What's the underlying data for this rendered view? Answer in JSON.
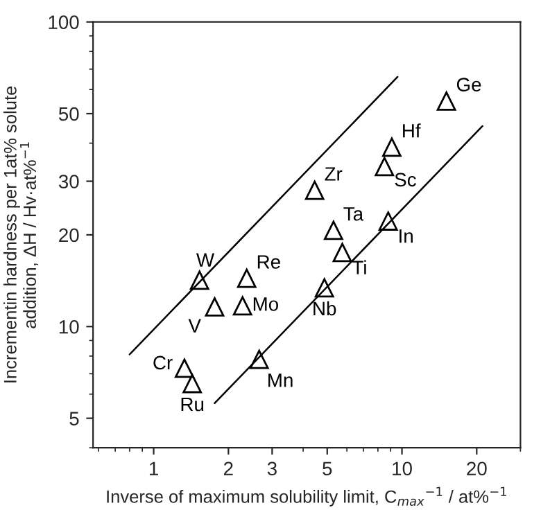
{
  "chart_data": {
    "type": "scatter",
    "xlabel": "Inverse of maximum solubility limit, C$_{max}$$^{−1}$ / at%$^{−1}$",
    "ylabel": "Incrementin hardness per 1at% solute\naddition, ΔH / Hv·at%$^{−1}$",
    "log": "xy",
    "marker": "triangle",
    "grid": false,
    "xlim": [
      0.57,
      30
    ],
    "xticks": [
      1,
      2,
      3,
      5,
      10,
      20
    ],
    "ylim": [
      4,
      100
    ],
    "yticks": [
      5,
      10,
      20,
      30,
      50,
      100
    ],
    "series": [
      {
        "name": "Ge",
        "color": "#000000",
        "x": [
          15.1
        ],
        "values": [
          55
        ]
      },
      {
        "name": "Hf",
        "color": "#000000",
        "x": [
          9.1
        ],
        "values": [
          38.8
        ]
      },
      {
        "name": "Sc",
        "color": "#000000",
        "x": [
          8.5
        ],
        "values": [
          33.5
        ]
      },
      {
        "name": "Zr",
        "color": "#000000",
        "x": [
          4.45
        ],
        "values": [
          28
        ]
      },
      {
        "name": "Ta",
        "color": "#000000",
        "x": [
          5.3
        ],
        "values": [
          20.7
        ]
      },
      {
        "name": "In",
        "color": "#000000",
        "x": [
          8.8
        ],
        "values": [
          22.2
        ]
      },
      {
        "name": "Ti",
        "color": "#000000",
        "x": [
          5.75
        ],
        "values": [
          17.5
        ]
      },
      {
        "name": "W",
        "color": "#000000",
        "x": [
          1.53
        ],
        "values": [
          14.2
        ]
      },
      {
        "name": "Re",
        "color": "#000000",
        "x": [
          2.37
        ],
        "values": [
          14.4
        ]
      },
      {
        "name": "V",
        "color": "#000000",
        "x": [
          1.76
        ],
        "values": [
          11.6
        ]
      },
      {
        "name": "Mo",
        "color": "#000000",
        "x": [
          2.28
        ],
        "values": [
          11.7
        ]
      },
      {
        "name": "Nb",
        "color": "#000000",
        "x": [
          4.87
        ],
        "values": [
          13.4
        ]
      },
      {
        "name": "Cr",
        "color": "#000000",
        "x": [
          1.33
        ],
        "values": [
          7.3
        ]
      },
      {
        "name": "Ru",
        "color": "#000000",
        "x": [
          1.43
        ],
        "values": [
          6.5
        ]
      },
      {
        "name": "Mn",
        "color": "#000000",
        "x": [
          2.66
        ],
        "values": [
          7.8
        ]
      },
      {
        "type": "line",
        "color": "#000000",
        "marker": "none",
        "x": [
          0.8,
          9.6
        ],
        "values": [
          8.1,
          66
        ]
      },
      {
        "type": "line",
        "color": "#000000",
        "marker": "none",
        "x": [
          1.76,
          21.1
        ],
        "values": [
          5.6,
          45.5
        ]
      }
    ]
  }
}
